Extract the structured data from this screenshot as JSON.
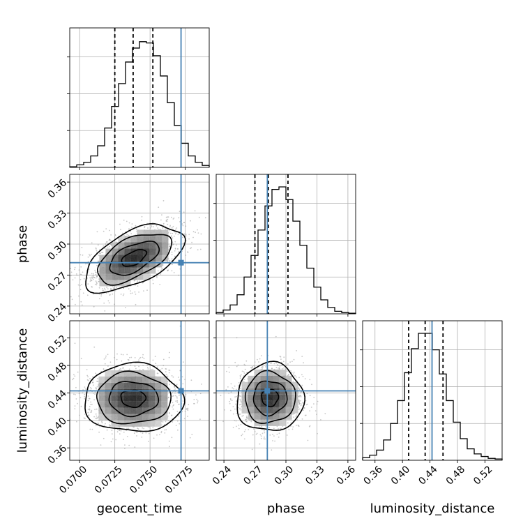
{
  "chart_data": {
    "type": "corner",
    "parameters": [
      {
        "name": "geocent_time",
        "range": [
          0.0693,
          0.0792
        ],
        "ticks": [
          0.07,
          0.0725,
          0.075,
          0.0775
        ],
        "tick_labels": [
          "0.0700",
          "0.0725",
          "0.0750",
          "0.0775"
        ],
        "quantiles": [
          0.0725,
          0.0738,
          0.0752
        ],
        "truth": 0.0772,
        "hist_edges_start": 0.0693,
        "hist_bin_width": 0.000495,
        "hist_values": [
          0.005,
          0.02,
          0.04,
          0.09,
          0.17,
          0.31,
          0.48,
          0.66,
          0.83,
          0.94,
          0.99,
          0.98,
          0.88,
          0.72,
          0.51,
          0.33,
          0.19,
          0.09,
          0.04,
          0.015
        ]
      },
      {
        "name": "phase",
        "range": [
          0.2325,
          0.3675
        ],
        "ticks": [
          0.24,
          0.27,
          0.3,
          0.33,
          0.36
        ],
        "tick_labels": [
          "0.24",
          "0.27",
          "0.30",
          "0.33",
          "0.36"
        ],
        "quantiles": [
          0.27,
          0.283,
          0.302
        ],
        "truth": 0.282,
        "hist_edges_start": 0.2325,
        "hist_bin_width": 0.00675,
        "hist_values": [
          0.01,
          0.03,
          0.07,
          0.15,
          0.29,
          0.46,
          0.66,
          0.85,
          0.98,
          1.0,
          0.9,
          0.73,
          0.54,
          0.36,
          0.21,
          0.11,
          0.05,
          0.02,
          0.01,
          0.005
        ]
      },
      {
        "name": "luminosity_distance",
        "range": [
          0.342,
          0.545
        ],
        "ticks": [
          0.36,
          0.4,
          0.44,
          0.48,
          0.52
        ],
        "tick_labels": [
          "0.36",
          "0.40",
          "0.44",
          "0.48",
          "0.52"
        ],
        "quantiles": [
          0.409,
          0.433,
          0.459
        ],
        "truth": 0.443,
        "hist_edges_start": 0.342,
        "hist_bin_width": 0.01015,
        "hist_values": [
          0.02,
          0.04,
          0.08,
          0.16,
          0.29,
          0.47,
          0.69,
          0.88,
          1.0,
          1.0,
          0.87,
          0.68,
          0.47,
          0.3,
          0.17,
          0.09,
          0.05,
          0.03,
          0.015,
          0.01
        ]
      }
    ],
    "pairs": [
      {
        "x": "geocent_time",
        "y": "phase",
        "center": [
          0.07385,
          0.2865
        ],
        "sigma": [
          0.00175,
          0.0162
        ],
        "corr": 0.55,
        "truth": [
          0.0772,
          0.282
        ]
      },
      {
        "x": "geocent_time",
        "y": "luminosity_distance",
        "center": [
          0.0738,
          0.432
        ],
        "sigma": [
          0.00175,
          0.0248
        ],
        "corr": -0.02,
        "truth": [
          0.0772,
          0.443
        ]
      },
      {
        "x": "phase",
        "y": "luminosity_distance",
        "center": [
          0.2845,
          0.433
        ],
        "sigma": [
          0.0162,
          0.0248
        ],
        "corr": 0.02,
        "truth": [
          0.282,
          0.443
        ]
      }
    ],
    "truth_color": "#4682b4",
    "grid": true,
    "line_color": "#000000",
    "samples_color": "#9a9a9a"
  }
}
